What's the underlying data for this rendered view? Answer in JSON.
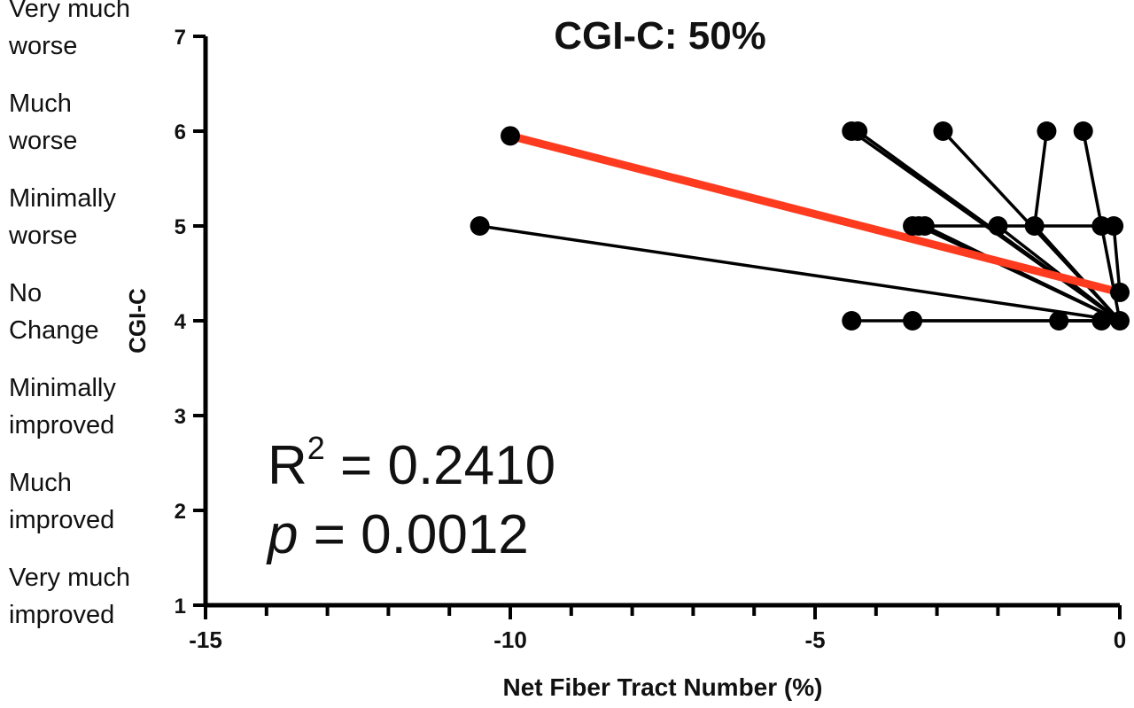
{
  "chart_data": {
    "type": "scatter",
    "title": "CGI-C: 50%",
    "xlabel": "Net Fiber Tract Number (%)",
    "ylabel": "CGI-C",
    "xlim": [
      -15,
      0
    ],
    "ylim": [
      1,
      7
    ],
    "x_ticks": [
      "-15",
      "-10",
      "-5",
      "0"
    ],
    "y_ticks": [
      "1",
      "2",
      "3",
      "4",
      "5",
      "6",
      "7"
    ],
    "y_category_labels": [
      {
        "value": 7,
        "label": "Very much\nworse"
      },
      {
        "value": 6,
        "label": "Much\nworse"
      },
      {
        "value": 5,
        "label": "Minimally\nworse"
      },
      {
        "value": 4,
        "label": "No\nChange"
      },
      {
        "value": 3,
        "label": "Minimally\nimproved"
      },
      {
        "value": 2,
        "label": "Much\nimproved"
      },
      {
        "value": 1,
        "label": "Very much\nimproved"
      }
    ],
    "paired_segments": [
      {
        "from": [
          -10.5,
          5
        ],
        "to": [
          0,
          4
        ]
      },
      {
        "from": [
          -4.4,
          6
        ],
        "to": [
          0,
          4
        ]
      },
      {
        "from": [
          -4.3,
          6
        ],
        "to": [
          0,
          4
        ]
      },
      {
        "from": [
          -2.9,
          6
        ],
        "to": [
          0,
          4
        ]
      },
      {
        "from": [
          -1.2,
          6
        ],
        "to": [
          -1.4,
          5
        ]
      },
      {
        "from": [
          -0.6,
          6
        ],
        "to": [
          -0.3,
          5
        ]
      },
      {
        "from": [
          -3.4,
          5
        ],
        "to": [
          0,
          5
        ]
      },
      {
        "from": [
          -3.3,
          5
        ],
        "to": [
          0,
          4
        ]
      },
      {
        "from": [
          -3.2,
          5
        ],
        "to": [
          0,
          4
        ]
      },
      {
        "from": [
          -2.0,
          5
        ],
        "to": [
          0,
          4
        ]
      },
      {
        "from": [
          -1.4,
          5
        ],
        "to": [
          0,
          4
        ]
      },
      {
        "from": [
          -0.3,
          5
        ],
        "to": [
          0,
          4
        ]
      },
      {
        "from": [
          -0.1,
          5
        ],
        "to": [
          0,
          4.3
        ]
      },
      {
        "from": [
          -4.4,
          4
        ],
        "to": [
          0,
          4
        ]
      },
      {
        "from": [
          -3.4,
          4
        ],
        "to": [
          0,
          4
        ]
      },
      {
        "from": [
          -1.0,
          4
        ],
        "to": [
          0,
          4
        ]
      },
      {
        "from": [
          -0.3,
          4
        ],
        "to": [
          0,
          4
        ]
      }
    ],
    "points": [
      {
        "x": -10.0,
        "y": 5.95
      },
      {
        "x": -10.5,
        "y": 5
      },
      {
        "x": -4.4,
        "y": 6
      },
      {
        "x": -4.3,
        "y": 6
      },
      {
        "x": -2.9,
        "y": 6
      },
      {
        "x": -1.2,
        "y": 6
      },
      {
        "x": -0.6,
        "y": 6
      },
      {
        "x": -3.4,
        "y": 5
      },
      {
        "x": -3.3,
        "y": 5
      },
      {
        "x": -3.2,
        "y": 5
      },
      {
        "x": -2.0,
        "y": 5
      },
      {
        "x": -1.4,
        "y": 5
      },
      {
        "x": -0.3,
        "y": 5
      },
      {
        "x": -0.1,
        "y": 5
      },
      {
        "x": 0,
        "y": 4.3
      },
      {
        "x": -4.4,
        "y": 4
      },
      {
        "x": -3.4,
        "y": 4
      },
      {
        "x": -1.0,
        "y": 4
      },
      {
        "x": -0.3,
        "y": 4
      },
      {
        "x": 0,
        "y": 4
      }
    ],
    "regression_line": {
      "from": [
        -10.0,
        5.95
      ],
      "to": [
        0,
        4.3
      ],
      "color": "#ff3b1f"
    },
    "stats": {
      "r_squared_label": "R",
      "r_squared_exp": "2",
      "r_squared_value": "= 0.2410",
      "p_label": "p",
      "p_value": "= 0.0012"
    },
    "grid": false,
    "legend": "none"
  }
}
